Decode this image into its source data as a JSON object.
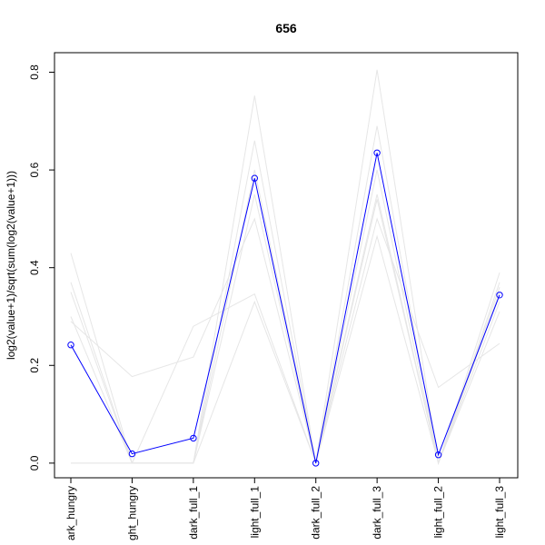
{
  "chart_data": {
    "type": "line",
    "title": "656",
    "xlabel": "",
    "ylabel": "log2(value+1)/sqrt(sum(log2(value+1)))",
    "categories": [
      "dark_hungry",
      "light_hungry",
      "dark_full_1",
      "light_full_1",
      "dark_full_2",
      "dark_full_3",
      "light_full_2",
      "light_full_3"
    ],
    "category_tick_labels": [
      "ark_hungry",
      "ght_hungry",
      "dark_full_1",
      "light_full_1",
      "dark_full_2",
      "dark_full_3",
      "light_full_2",
      "light_full_3"
    ],
    "ylim": [
      -0.03,
      0.84
    ],
    "yticks": [
      0.0,
      0.2,
      0.4,
      0.6,
      0.8
    ],
    "ytick_labels": [
      "0.0",
      "0.2",
      "0.4",
      "0.6",
      "0.8"
    ],
    "grid": false,
    "legend": "none",
    "highlight_color": "#0000ff",
    "background_color": "#e6e6e6",
    "series": [
      {
        "role": "highlight",
        "values": [
          0.242,
          0.019,
          0.051,
          0.583,
          0.0,
          0.635,
          0.017,
          0.344
        ]
      },
      {
        "role": "background",
        "values": [
          0.43,
          0.0,
          0.0,
          0.752,
          0.0,
          0.805,
          0.0,
          0.39
        ]
      },
      {
        "role": "background",
        "values": [
          0.37,
          0.0,
          0.0,
          0.66,
          0.0,
          0.69,
          0.0,
          0.37
        ]
      },
      {
        "role": "background",
        "values": [
          0.35,
          0.0,
          0.0,
          0.6,
          0.0,
          0.6,
          0.0,
          0.35
        ]
      },
      {
        "role": "background",
        "values": [
          0.3,
          0.0,
          0.0,
          0.55,
          0.0,
          0.55,
          0.0,
          0.33
        ]
      },
      {
        "role": "background",
        "values": [
          0.29,
          0.177,
          0.217,
          0.5,
          0.0,
          0.54,
          0.0,
          0.36
        ]
      },
      {
        "role": "background",
        "values": [
          0.0,
          0.0,
          0.28,
          0.346,
          0.0,
          0.464,
          0.0,
          0.31
        ]
      },
      {
        "role": "background",
        "values": [
          0.0,
          0.0,
          0.0,
          0.33,
          0.0,
          0.5,
          0.155,
          0.245
        ]
      }
    ]
  }
}
